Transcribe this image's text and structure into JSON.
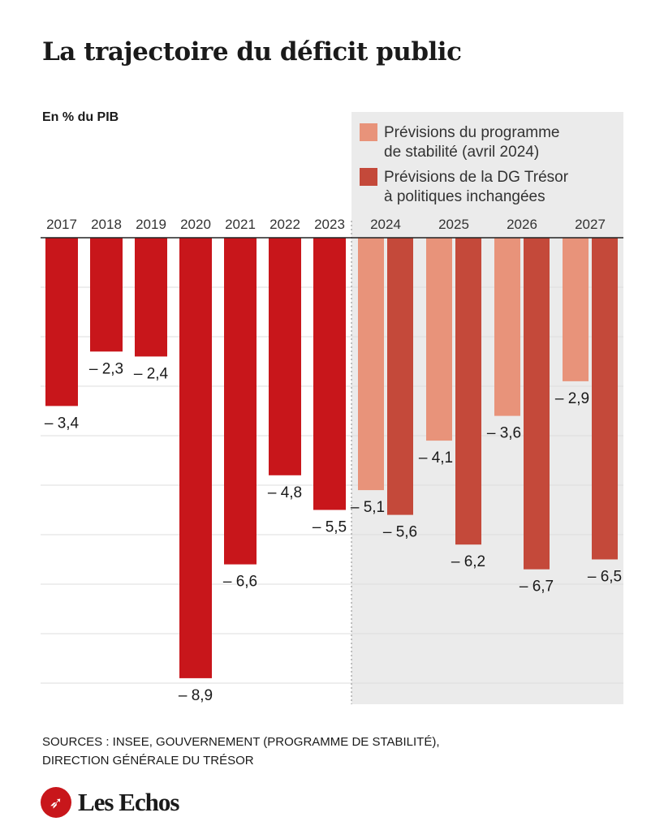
{
  "chart_data": {
    "type": "bar",
    "title": "La trajectoire du déficit public",
    "ylabel": "En % du PIB",
    "ylim": [
      -9,
      0
    ],
    "grid": true,
    "legend_placement": "top-right",
    "historical": {
      "categories": [
        "2017",
        "2018",
        "2019",
        "2020",
        "2021",
        "2022",
        "2023"
      ],
      "values": [
        -3.4,
        -2.3,
        -2.4,
        -8.9,
        -6.6,
        -4.8,
        -5.5
      ],
      "labels": [
        "– 3,4",
        "– 2,3",
        "– 2,4",
        "– 8,9",
        "– 6,6",
        "– 4,8",
        "– 5,5"
      ],
      "color": "#c8161b"
    },
    "forecast_categories": [
      "2024",
      "2025",
      "2026",
      "2027"
    ],
    "series": [
      {
        "name": "Prévisions du programme de stabilité (avril 2024)",
        "name_lines": [
          "Prévisions du programme",
          "de stabilité (avril 2024)"
        ],
        "values": [
          -5.1,
          -4.1,
          -3.6,
          -2.9
        ],
        "labels": [
          "– 5,1",
          "– 4,1",
          "– 3,6",
          "– 2,9"
        ],
        "color": "#e8937a"
      },
      {
        "name": "Prévisions de la DG Trésor à politiques inchangées",
        "name_lines": [
          "Prévisions de la DG Trésor",
          "à politiques inchangées"
        ],
        "values": [
          -5.6,
          -6.2,
          -6.7,
          -6.5
        ],
        "labels": [
          "– 5,6",
          "– 6,2",
          "– 6,7",
          "– 6,5"
        ],
        "color": "#c4493a"
      }
    ],
    "forecast_background": "#ebebeb"
  },
  "sources": [
    "SOURCES : INSEE, GOUVERNEMENT (PROGRAMME DE STABILITÉ),",
    "DIRECTION GÉNÉRALE DU TRÉSOR"
  ],
  "logo": {
    "text": "Les Echos",
    "brand_color": "#c8161b"
  }
}
